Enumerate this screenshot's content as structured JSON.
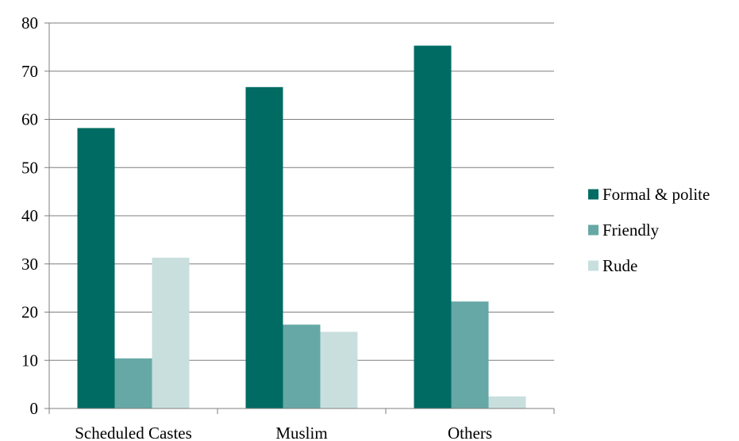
{
  "chart_data": {
    "type": "bar",
    "title": "",
    "xlabel": "",
    "ylabel": "",
    "categories": [
      "Scheduled Castes",
      "Muslim",
      "Others"
    ],
    "series": [
      {
        "name": "Formal & polite",
        "color": "#006b63",
        "values": [
          58.2,
          66.7,
          75.3
        ]
      },
      {
        "name": "Friendly",
        "color": "#66a8a5",
        "values": [
          10.4,
          17.4,
          22.2
        ]
      },
      {
        "name": "Rude",
        "color": "#c8dfde",
        "values": [
          31.3,
          15.9,
          2.5
        ]
      }
    ],
    "ylim": [
      0,
      80
    ],
    "yticks": [
      0,
      10,
      20,
      30,
      40,
      50,
      60,
      70,
      80
    ],
    "grid": true,
    "legend_position": "right"
  }
}
